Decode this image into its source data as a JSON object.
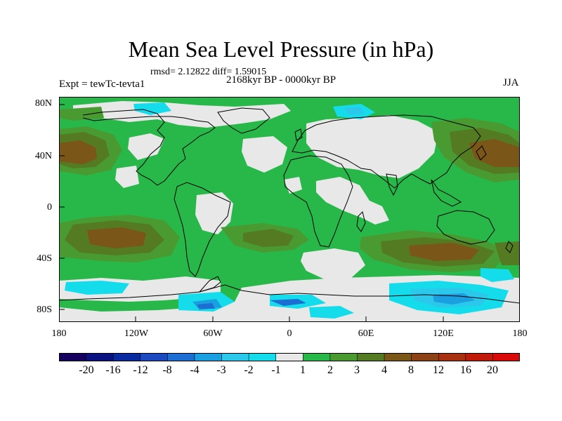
{
  "figure": {
    "title": "Mean Sea Level Pressure (in hPa)",
    "stats": "rmsd= 2.12822 diff= 1.59015",
    "period": "2168kyr BP - 0000kyr BP",
    "experiment": "Expt = tewTc-tevta1",
    "season": "JJA"
  },
  "axes": {
    "lat_labels": [
      "80N",
      "40N",
      "0",
      "40S",
      "80S"
    ],
    "lon_labels": [
      "180",
      "120W",
      "60W",
      "0",
      "60E",
      "120E",
      "180"
    ]
  },
  "colorbar": {
    "labels": [
      "-20",
      "-16",
      "-12",
      "-8",
      "-4",
      "-3",
      "-2",
      "-1",
      "1",
      "2",
      "3",
      "4",
      "8",
      "12",
      "16",
      "20"
    ],
    "colors": [
      "#150060",
      "#0a1282",
      "#0a2aa0",
      "#1a49c0",
      "#1c6ed2",
      "#1aa0e0",
      "#2cc8ec",
      "#14dcea",
      "#e8e8e8",
      "#28b84a",
      "#4a9a32",
      "#547a22",
      "#7a5618",
      "#8c4214",
      "#a63010",
      "#c01a0a",
      "#d80a0a"
    ]
  },
  "palette": {
    "land_neutral": "#e8e8e8",
    "green": "#28b84a",
    "dark_green": "#4a9a32",
    "olive": "#547a22",
    "brown": "#7a5618",
    "light_cyan": "#14dcea",
    "cyan": "#2cc8ec",
    "sky_blue": "#1aa0e0",
    "blue": "#1c6ed2"
  }
}
